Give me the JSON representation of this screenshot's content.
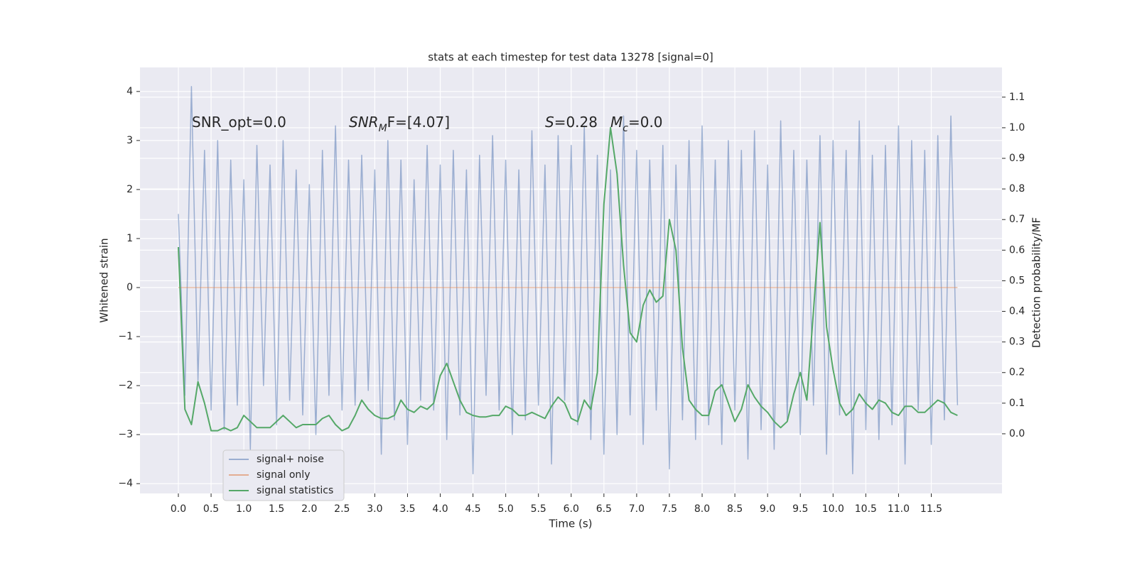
{
  "chart_data": {
    "type": "line",
    "title": "stats at each timestep for test data 13278 [signal=0]",
    "x_label": "Time (s)",
    "y_label": "Whitened strain",
    "y2_label": "Detection probability/MF",
    "annotations": [
      [
        "SNR_opt=0.0"
      ],
      [
        "SNR",
        "M",
        "F=[4.07]"
      ],
      [
        "S",
        "=0.28"
      ],
      [
        "M",
        "c",
        "=0.0"
      ]
    ],
    "x": [
      0.0,
      0.1,
      0.2,
      0.3,
      0.4,
      0.5,
      0.6,
      0.7,
      0.8,
      0.9,
      1.0,
      1.1,
      1.2,
      1.3,
      1.4,
      1.5,
      1.6,
      1.7,
      1.8,
      1.9,
      2.0,
      2.1,
      2.2,
      2.3,
      2.4,
      2.5,
      2.6,
      2.7,
      2.8,
      2.9,
      3.0,
      3.1,
      3.2,
      3.3,
      3.4,
      3.5,
      3.6,
      3.7,
      3.8,
      3.9,
      4.0,
      4.1,
      4.2,
      4.3,
      4.4,
      4.5,
      4.6,
      4.7,
      4.8,
      4.9,
      5.0,
      5.1,
      5.2,
      5.3,
      5.4,
      5.5,
      5.6,
      5.7,
      5.8,
      5.9,
      6.0,
      6.1,
      6.2,
      6.3,
      6.4,
      6.5,
      6.6,
      6.7,
      6.8,
      6.9,
      7.0,
      7.1,
      7.2,
      7.3,
      7.4,
      7.5,
      7.6,
      7.7,
      7.8,
      7.9,
      8.0,
      8.1,
      8.2,
      8.3,
      8.4,
      8.5,
      8.6,
      8.7,
      8.8,
      8.9,
      9.0,
      9.1,
      9.2,
      9.3,
      9.4,
      9.5,
      9.6,
      9.7,
      9.8,
      9.9,
      10.0,
      10.1,
      10.2,
      10.3,
      10.4,
      10.5,
      10.6,
      10.7,
      10.8,
      10.9,
      11.0,
      11.1,
      11.2,
      11.3,
      11.4,
      11.5,
      11.6,
      11.7,
      11.8,
      11.9
    ],
    "series": [
      {
        "name": "signal+ noise",
        "color": "#4c72b0",
        "values": [
          1.5,
          -2.2,
          4.1,
          -1.9,
          2.8,
          -2.5,
          3.0,
          -2.9,
          2.6,
          -2.4,
          2.2,
          -3.3,
          2.9,
          -2.0,
          2.5,
          -2.8,
          3.0,
          -2.3,
          2.4,
          -2.6,
          2.1,
          -3.0,
          2.8,
          -2.2,
          3.3,
          -2.5,
          2.6,
          -2.4,
          2.7,
          -2.1,
          2.4,
          -3.4,
          3.0,
          -2.7,
          2.6,
          -3.2,
          2.2,
          -2.3,
          2.9,
          -2.5,
          2.5,
          -3.1,
          2.8,
          -2.6,
          2.4,
          -3.8,
          2.7,
          -2.2,
          3.1,
          -2.5,
          2.6,
          -3.0,
          2.4,
          -2.7,
          3.2,
          -2.4,
          2.5,
          -3.6,
          3.1,
          -2.3,
          2.9,
          -2.8,
          3.3,
          -3.1,
          2.7,
          -3.4,
          2.4,
          -3.0,
          3.5,
          -2.6,
          2.8,
          -3.2,
          2.6,
          -2.5,
          2.9,
          -3.7,
          2.5,
          -2.7,
          3.0,
          -3.1,
          3.3,
          -2.8,
          2.6,
          -3.2,
          3.0,
          -2.5,
          2.8,
          -3.5,
          3.2,
          -2.9,
          2.5,
          -3.3,
          3.4,
          -2.7,
          2.8,
          -3.0,
          2.6,
          -2.4,
          3.1,
          -3.4,
          3.0,
          -2.6,
          2.8,
          -3.8,
          3.4,
          -2.9,
          2.7,
          -3.1,
          2.9,
          -2.8,
          3.3,
          -3.6,
          3.0,
          -2.5,
          2.8,
          -3.2,
          3.1,
          -2.7,
          3.5,
          -2.4
        ]
      },
      {
        "name": "signal only",
        "color": "#dd8452",
        "values": [
          0,
          0,
          0,
          0,
          0,
          0,
          0,
          0,
          0,
          0,
          0,
          0,
          0,
          0,
          0,
          0,
          0,
          0,
          0,
          0,
          0,
          0,
          0,
          0,
          0,
          0,
          0,
          0,
          0,
          0,
          0,
          0,
          0,
          0,
          0,
          0,
          0,
          0,
          0,
          0,
          0,
          0,
          0,
          0,
          0,
          0,
          0,
          0,
          0,
          0,
          0,
          0,
          0,
          0,
          0,
          0,
          0,
          0,
          0,
          0,
          0,
          0,
          0,
          0,
          0,
          0,
          0,
          0,
          0,
          0,
          0,
          0,
          0,
          0,
          0,
          0,
          0,
          0,
          0,
          0,
          0,
          0,
          0,
          0,
          0,
          0,
          0,
          0,
          0,
          0,
          0,
          0,
          0,
          0,
          0,
          0,
          0,
          0,
          0,
          0,
          0,
          0,
          0,
          0,
          0,
          0,
          0,
          0,
          0,
          0,
          0,
          0,
          0,
          0,
          0,
          0,
          0,
          0,
          0,
          0
        ]
      },
      {
        "name": "signal statistics",
        "color": "#55a868",
        "axis": "y2",
        "values": [
          0.61,
          0.08,
          0.03,
          0.17,
          0.1,
          0.01,
          0.01,
          0.02,
          0.01,
          0.02,
          0.06,
          0.04,
          0.02,
          0.02,
          0.02,
          0.04,
          0.06,
          0.04,
          0.02,
          0.03,
          0.03,
          0.03,
          0.05,
          0.06,
          0.03,
          0.01,
          0.02,
          0.06,
          0.11,
          0.08,
          0.06,
          0.05,
          0.05,
          0.06,
          0.11,
          0.08,
          0.07,
          0.09,
          0.08,
          0.1,
          0.19,
          0.23,
          0.17,
          0.11,
          0.07,
          0.06,
          0.055,
          0.055,
          0.06,
          0.06,
          0.09,
          0.08,
          0.06,
          0.06,
          0.07,
          0.06,
          0.05,
          0.09,
          0.12,
          0.1,
          0.05,
          0.04,
          0.11,
          0.08,
          0.2,
          0.75,
          1.0,
          0.85,
          0.55,
          0.33,
          0.3,
          0.42,
          0.47,
          0.43,
          0.45,
          0.7,
          0.6,
          0.28,
          0.11,
          0.08,
          0.06,
          0.06,
          0.14,
          0.16,
          0.1,
          0.04,
          0.08,
          0.16,
          0.12,
          0.09,
          0.07,
          0.04,
          0.02,
          0.04,
          0.13,
          0.2,
          0.11,
          0.4,
          0.69,
          0.35,
          0.21,
          0.1,
          0.06,
          0.08,
          0.13,
          0.1,
          0.08,
          0.11,
          0.1,
          0.07,
          0.06,
          0.09,
          0.09,
          0.07,
          0.07,
          0.09,
          0.11,
          0.1,
          0.07,
          0.06
        ]
      }
    ],
    "xlim": [
      -0.586,
      12.58
    ],
    "xticks": [
      {
        "value": 0,
        "label": "0.0"
      },
      0.5,
      {
        "value": 1,
        "label": "1.0"
      },
      1.5,
      {
        "value": 2,
        "label": "2.0"
      },
      2.5,
      {
        "value": 3,
        "label": "3.0"
      },
      3.5,
      {
        "value": 4,
        "label": "4.0"
      },
      4.5,
      {
        "value": 5,
        "label": "5.0"
      },
      5.5,
      {
        "value": 6,
        "label": "6.0"
      },
      6.5,
      {
        "value": 7,
        "label": "7.0"
      },
      7.5,
      {
        "value": 8,
        "label": "8.0"
      },
      8.5,
      {
        "value": 9,
        "label": "9.0"
      },
      9.5,
      {
        "value": 10,
        "label": "10.0"
      },
      10.5,
      {
        "value": 11,
        "label": "11.0"
      },
      11.5
    ],
    "ylim": [
      -4.2,
      4.49
    ],
    "yticks": [
      {
        "value": -4,
        "label": "−4"
      },
      {
        "value": -3,
        "label": "−3"
      },
      {
        "value": -2,
        "label": "−2"
      },
      {
        "value": -1,
        "label": "−1"
      },
      0,
      1,
      2,
      3,
      4
    ],
    "y2lim": [
      -0.195,
      1.197
    ],
    "y2ticks": [
      {
        "value": 0,
        "label": "0.0"
      },
      0.1,
      0.2,
      0.3,
      0.4,
      0.5,
      0.6,
      0.7,
      0.8,
      0.9,
      {
        "value": 1,
        "label": "1.0"
      },
      1.1
    ],
    "grid": true,
    "legend": "lower left"
  }
}
